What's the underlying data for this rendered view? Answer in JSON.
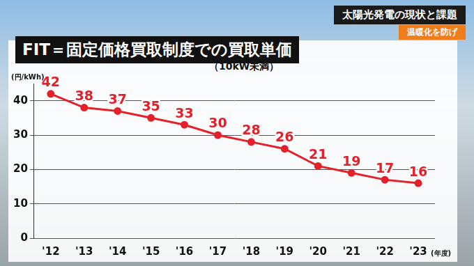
{
  "chart_data": {
    "type": "line",
    "title": "FIT＝固定価格買取制度での買取単価",
    "subtitle": "（10kW未満）",
    "annotations": [
      "太陽光発電の現状と課題",
      "温暖化を防げ"
    ],
    "ylabel": "(円/kWh)",
    "xlabel": "(年度)",
    "categories": [
      "'12",
      "'13",
      "'14",
      "'15",
      "'16",
      "'17",
      "'18",
      "'19",
      "'20",
      "'21",
      "'22",
      "'23"
    ],
    "values": [
      42,
      38,
      37,
      35,
      33,
      30,
      28,
      26,
      21,
      19,
      17,
      16
    ],
    "color": "#e3212b",
    "ylim": [
      0,
      45
    ],
    "yticks": [
      0,
      10,
      20,
      30,
      40
    ],
    "grid": true,
    "data_labels": true,
    "marker": "circle",
    "line_style": "solid"
  }
}
